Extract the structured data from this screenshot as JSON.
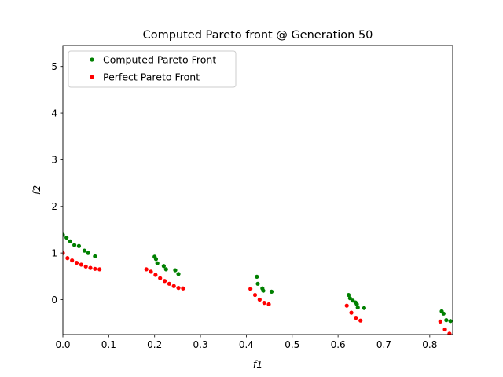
{
  "chart_data": {
    "type": "scatter",
    "title": "Computed Pareto front @ Generation 50",
    "xlabel": "f1",
    "ylabel": "f2",
    "xlim": [
      0.0,
      0.85
    ],
    "ylim": [
      -0.75,
      5.45
    ],
    "xticks": [
      "0.0",
      "0.1",
      "0.2",
      "0.3",
      "0.4",
      "0.5",
      "0.6",
      "0.7",
      "0.8"
    ],
    "yticks": [
      "0",
      "1",
      "2",
      "3",
      "4",
      "5"
    ],
    "legend_position": "upper-left",
    "grid": false,
    "series": [
      {
        "name": "Computed Pareto Front",
        "color": "#008000",
        "points": [
          [
            0.0,
            1.39
          ],
          [
            0.008,
            1.33
          ],
          [
            0.016,
            1.25
          ],
          [
            0.025,
            1.17
          ],
          [
            0.035,
            1.15
          ],
          [
            0.047,
            1.05
          ],
          [
            0.055,
            1.0
          ],
          [
            0.07,
            0.93
          ],
          [
            0.2,
            0.92
          ],
          [
            0.203,
            0.87
          ],
          [
            0.206,
            0.78
          ],
          [
            0.22,
            0.72
          ],
          [
            0.225,
            0.65
          ],
          [
            0.245,
            0.63
          ],
          [
            0.252,
            0.55
          ],
          [
            0.423,
            0.49
          ],
          [
            0.425,
            0.34
          ],
          [
            0.435,
            0.24
          ],
          [
            0.437,
            0.19
          ],
          [
            0.455,
            0.17
          ],
          [
            0.623,
            0.1
          ],
          [
            0.626,
            0.03
          ],
          [
            0.632,
            -0.02
          ],
          [
            0.638,
            -0.06
          ],
          [
            0.641,
            -0.1
          ],
          [
            0.643,
            -0.17
          ],
          [
            0.657,
            -0.18
          ],
          [
            0.826,
            -0.25
          ],
          [
            0.83,
            -0.3
          ],
          [
            0.836,
            -0.44
          ],
          [
            0.845,
            -0.46
          ]
        ]
      },
      {
        "name": "Perfect Pareto Front",
        "color": "#ff0000",
        "points": [
          [
            0.0,
            1.0
          ],
          [
            0.01,
            0.89
          ],
          [
            0.02,
            0.84
          ],
          [
            0.03,
            0.79
          ],
          [
            0.04,
            0.75
          ],
          [
            0.05,
            0.71
          ],
          [
            0.06,
            0.68
          ],
          [
            0.07,
            0.66
          ],
          [
            0.08,
            0.65
          ],
          [
            0.182,
            0.65
          ],
          [
            0.192,
            0.6
          ],
          [
            0.202,
            0.53
          ],
          [
            0.212,
            0.46
          ],
          [
            0.222,
            0.4
          ],
          [
            0.232,
            0.34
          ],
          [
            0.242,
            0.29
          ],
          [
            0.252,
            0.25
          ],
          [
            0.262,
            0.24
          ],
          [
            0.409,
            0.23
          ],
          [
            0.419,
            0.1
          ],
          [
            0.429,
            0.0
          ],
          [
            0.439,
            -0.07
          ],
          [
            0.449,
            -0.1
          ],
          [
            0.619,
            -0.13
          ],
          [
            0.629,
            -0.28
          ],
          [
            0.639,
            -0.39
          ],
          [
            0.649,
            -0.45
          ],
          [
            0.823,
            -0.47
          ],
          [
            0.833,
            -0.64
          ],
          [
            0.843,
            -0.73
          ]
        ]
      }
    ]
  }
}
